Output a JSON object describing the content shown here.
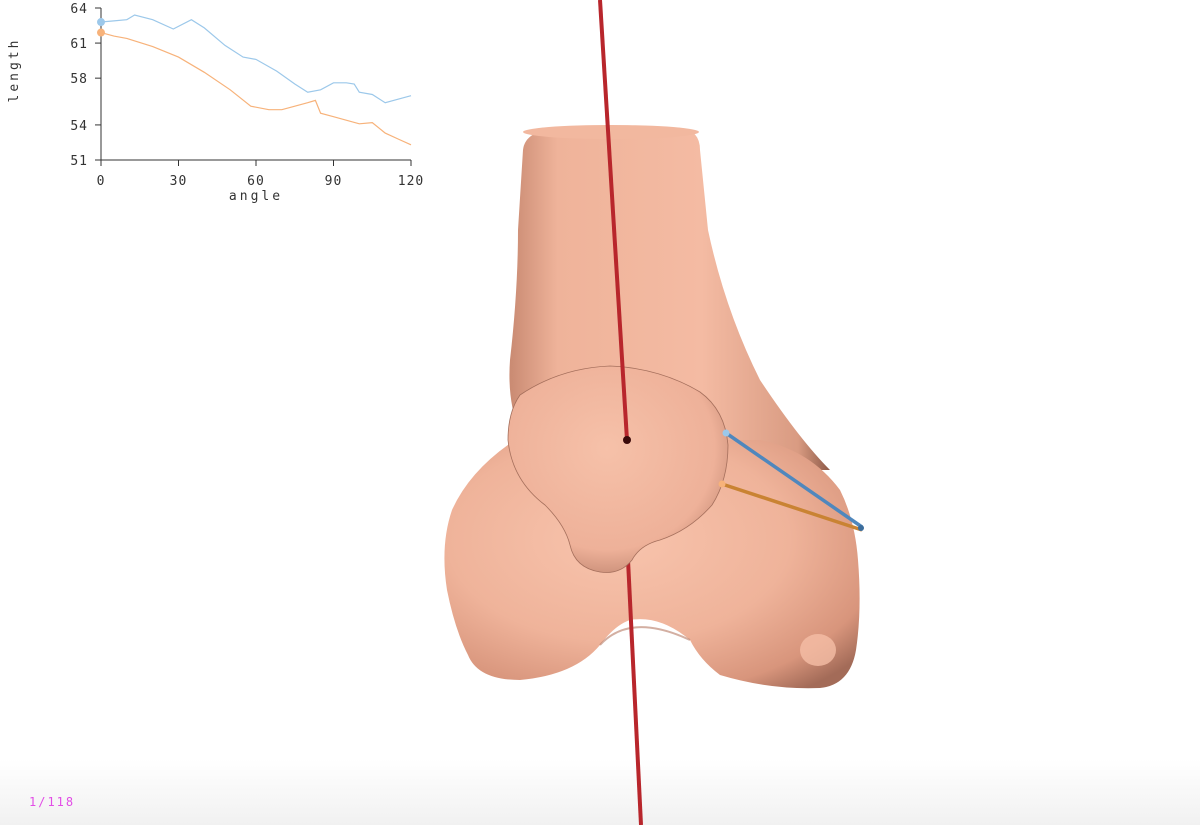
{
  "colors": {
    "bone": "#efb39a",
    "bone_shadow": "#c08570",
    "axis_rod": "#b8262c",
    "series_blue": "#9cc8ea",
    "series_orange": "#f7b27a",
    "ligament_blue": "#4f87bd",
    "ligament_orange": "#c98333",
    "counter_text": "#e24de6"
  },
  "viewer": {
    "frame_counter": "1/118",
    "model": "femur-icon"
  },
  "chart_data": {
    "type": "line",
    "xlabel": "angle",
    "ylabel": "length",
    "xlim": [
      0,
      120
    ],
    "ylim": [
      51,
      64
    ],
    "xticks": [
      "0",
      "30",
      "60",
      "90",
      "120"
    ],
    "yticks": [
      "51",
      "54",
      "58",
      "61",
      "64"
    ],
    "grid": false,
    "legend": "none",
    "series": [
      {
        "color": "#9cc8ea",
        "x": [
          0,
          5,
          10,
          13,
          20,
          28,
          35,
          40,
          48,
          55,
          60,
          68,
          75,
          80,
          85,
          90,
          95,
          98,
          100,
          105,
          110,
          115,
          120
        ],
        "y": [
          62.8,
          62.9,
          63.0,
          63.4,
          63.0,
          62.2,
          63.0,
          62.3,
          60.8,
          59.8,
          59.6,
          58.6,
          57.5,
          56.8,
          57.0,
          57.6,
          57.6,
          57.5,
          56.8,
          56.6,
          55.9,
          56.2,
          56.5
        ]
      },
      {
        "color": "#f7b27a",
        "x": [
          0,
          5,
          10,
          20,
          30,
          40,
          50,
          58,
          65,
          70,
          75,
          80,
          83,
          85,
          90,
          100,
          105,
          110,
          115,
          120
        ],
        "y": [
          61.9,
          61.6,
          61.4,
          60.7,
          59.8,
          58.5,
          57.0,
          55.6,
          55.3,
          55.3,
          55.6,
          55.9,
          56.1,
          55.0,
          54.7,
          54.1,
          54.2,
          53.3,
          52.8,
          52.3
        ]
      }
    ]
  }
}
